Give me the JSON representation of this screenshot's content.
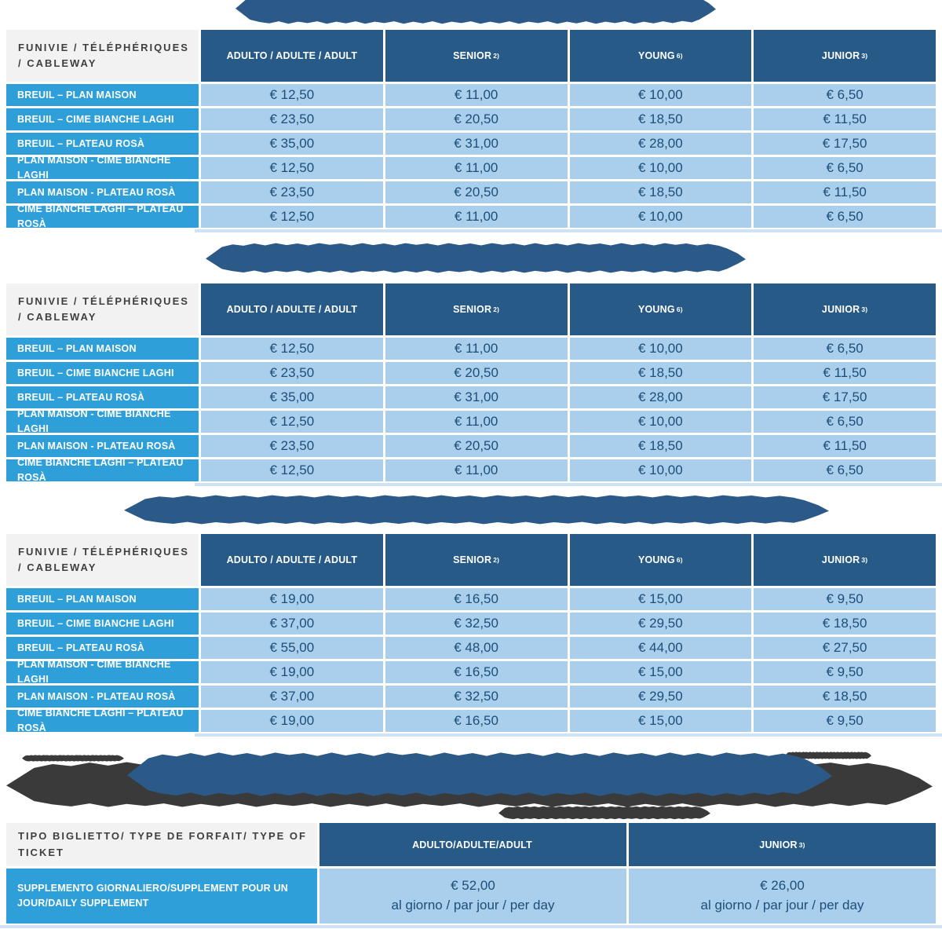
{
  "colors": {
    "header_blue": "#275a87",
    "row_label_blue": "#2e9fd9",
    "cell_light_blue": "#a9cfec",
    "banner_blue": "#2b5a88",
    "note_dark": "#3a3a3a",
    "price_text_navy": "#1d4e79",
    "corner_gray": "#f2f2f2"
  },
  "price_table_header": {
    "row_header": "FUNIVIE / TÉLÉPHÉRIQUES / CABLEWAY",
    "columns": [
      {
        "label": "ADULTO / ADULTE / ADULT",
        "sup": ""
      },
      {
        "label": "SENIOR",
        "sup": "2)"
      },
      {
        "label": "YOUNG",
        "sup": "6)"
      },
      {
        "label": "JUNIOR",
        "sup": "3)"
      }
    ]
  },
  "tables": [
    {
      "rows": [
        {
          "route": "BREUIL – PLAN MAISON",
          "prices": [
            "€ 12,50",
            "€ 11,00",
            "€ 10,00",
            "€ 6,50"
          ]
        },
        {
          "route": "BREUIL – CIME BIANCHE LAGHI",
          "prices": [
            "€ 23,50",
            "€ 20,50",
            "€ 18,50",
            "€ 11,50"
          ]
        },
        {
          "route": "BREUIL – PLATEAU ROSÀ",
          "prices": [
            "€ 35,00",
            "€ 31,00",
            "€ 28,00",
            "€ 17,50"
          ]
        },
        {
          "route": "PLAN MAISON - CIME BIANCHE LAGHI",
          "prices": [
            "€ 12,50",
            "€ 11,00",
            "€ 10,00",
            "€ 6,50"
          ]
        },
        {
          "route": "PLAN MAISON - PLATEAU ROSÀ",
          "prices": [
            "€ 23,50",
            "€ 20,50",
            "€ 18,50",
            "€ 11,50"
          ]
        },
        {
          "route": "CIME BIANCHE LAGHI – PLATEAU ROSÀ",
          "prices": [
            "€ 12,50",
            "€ 11,00",
            "€ 10,00",
            "€ 6,50"
          ]
        }
      ]
    },
    {
      "rows": [
        {
          "route": "BREUIL – PLAN MAISON",
          "prices": [
            "€ 12,50",
            "€ 11,00",
            "€ 10,00",
            "€ 6,50"
          ]
        },
        {
          "route": "BREUIL – CIME BIANCHE LAGHI",
          "prices": [
            "€ 23,50",
            "€ 20,50",
            "€ 18,50",
            "€ 11,50"
          ]
        },
        {
          "route": "BREUIL – PLATEAU ROSÀ",
          "prices": [
            "€ 35,00",
            "€ 31,00",
            "€ 28,00",
            "€ 17,50"
          ]
        },
        {
          "route": "PLAN MAISON - CIME BIANCHE LAGHI",
          "prices": [
            "€ 12,50",
            "€ 11,00",
            "€ 10,00",
            "€ 6,50"
          ]
        },
        {
          "route": "PLAN MAISON - PLATEAU ROSÀ",
          "prices": [
            "€ 23,50",
            "€ 20,50",
            "€ 18,50",
            "€ 11,50"
          ]
        },
        {
          "route": "CIME BIANCHE LAGHI – PLATEAU ROSÀ",
          "prices": [
            "€ 12,50",
            "€ 11,00",
            "€ 10,00",
            "€ 6,50"
          ]
        }
      ]
    },
    {
      "rows": [
        {
          "route": "BREUIL – PLAN MAISON",
          "prices": [
            "€ 19,00",
            "€ 16,50",
            "€ 15,00",
            "€ 9,50"
          ]
        },
        {
          "route": "BREUIL – CIME BIANCHE LAGHI",
          "prices": [
            "€ 37,00",
            "€ 32,50",
            "€ 29,50",
            "€ 18,50"
          ]
        },
        {
          "route": "BREUIL – PLATEAU ROSÀ",
          "prices": [
            "€ 55,00",
            "€ 48,00",
            "€ 44,00",
            "€ 27,50"
          ]
        },
        {
          "route": "PLAN MAISON - CIME BIANCHE LAGHI",
          "prices": [
            "€ 19,00",
            "€ 16,50",
            "€ 15,00",
            "€ 9,50"
          ]
        },
        {
          "route": "PLAN MAISON - PLATEAU ROSÀ",
          "prices": [
            "€ 37,00",
            "€ 32,50",
            "€ 29,50",
            "€ 18,50"
          ]
        },
        {
          "route": "CIME BIANCHE LAGHI – PLATEAU ROSÀ",
          "prices": [
            "€ 19,00",
            "€ 16,50",
            "€ 15,00",
            "€ 9,50"
          ]
        }
      ]
    }
  ],
  "supplement_table": {
    "row_header": "TIPO BIGLIETTO/ TYPE DE FORFAIT/ TYPE OF TICKET",
    "columns": [
      {
        "label": "ADULTO/ADULTE/ADULT",
        "sup": ""
      },
      {
        "label": "JUNIOR",
        "sup": "3)"
      }
    ],
    "row": {
      "label": "SUPPLEMENTO GIORNALIERO/SUPPLEMENT POUR UN JOUR/DAILY SUPPLEMENT",
      "values": [
        {
          "price": "€ 52,00",
          "per": "al giorno / par jour / per day"
        },
        {
          "price": "€ 26,00",
          "per": "al giorno / par jour / per day"
        }
      ]
    }
  }
}
